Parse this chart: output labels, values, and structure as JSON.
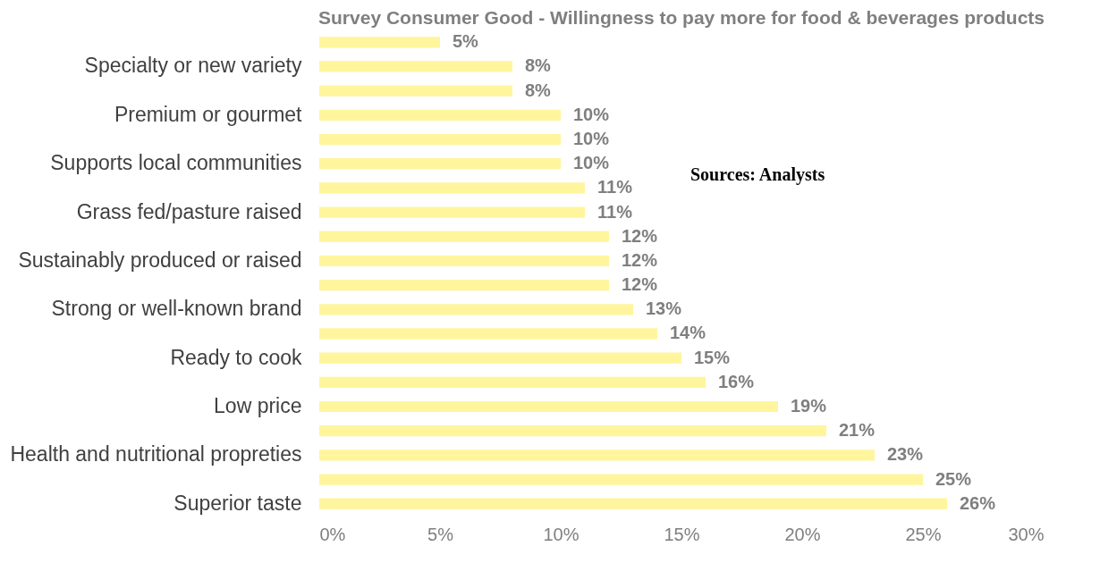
{
  "chart_data": {
    "type": "bar",
    "orientation": "horizontal",
    "title": "Survey Consumer Good - Willingness to pay more for food & beverages products",
    "categories": [
      null,
      "Specialty or new variety",
      null,
      "Premium or gourmet",
      null,
      "Supports local communities",
      null,
      "Grass fed/pasture raised",
      null,
      "Sustainably produced or raised",
      null,
      "Strong or well-known brand",
      null,
      "Ready to cook",
      null,
      "Low price",
      null,
      "Health and nutritional propreties",
      null,
      "Superior taste"
    ],
    "values": [
      5,
      8,
      8,
      10,
      10,
      10,
      11,
      11,
      12,
      12,
      12,
      13,
      14,
      15,
      16,
      19,
      21,
      23,
      25,
      26
    ],
    "value_labels": [
      "5%",
      "8%",
      "8%",
      "10%",
      "10%",
      "10%",
      "11%",
      "11%",
      "12%",
      "12%",
      "12%",
      "13%",
      "14%",
      "15%",
      "16%",
      "19%",
      "21%",
      "23%",
      "25%",
      "26%"
    ],
    "color": "#fff59d",
    "xlim": [
      0,
      30
    ],
    "xticks": [
      {
        "value": 0,
        "label": "0%"
      },
      {
        "value": 5,
        "label": "5%"
      },
      {
        "value": 10,
        "label": "10%"
      },
      {
        "value": 15,
        "label": "15%"
      },
      {
        "value": 20,
        "label": "20%"
      },
      {
        "value": 25,
        "label": "25%"
      },
      {
        "value": 30,
        "label": "30%"
      }
    ],
    "grid": false,
    "annotations": [
      "Sources: Analysts"
    ]
  }
}
